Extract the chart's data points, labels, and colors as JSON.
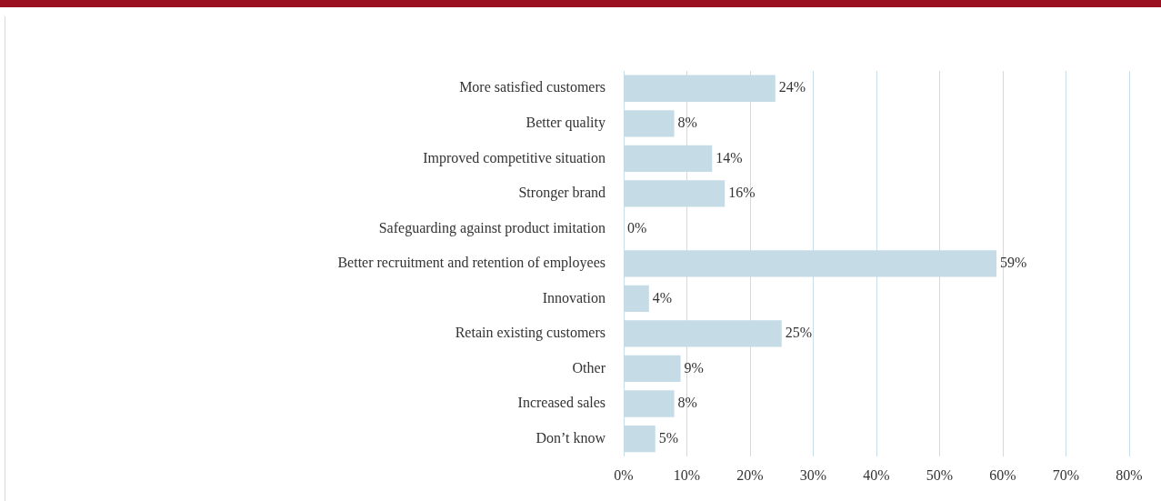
{
  "chart_data": {
    "type": "bar",
    "orientation": "horizontal",
    "categories": [
      "More satisfied customers",
      "Better quality",
      "Improved competitive situation",
      "Stronger brand",
      "Safeguarding against product imitation",
      "Better recruitment and retention of employees",
      "Innovation",
      "Retain existing customers",
      "Other",
      "Increased sales",
      "Don’t know"
    ],
    "values": [
      24,
      8,
      14,
      16,
      0,
      59,
      4,
      25,
      9,
      8,
      5
    ],
    "value_labels": [
      "24%",
      "8%",
      "14%",
      "16%",
      "0%",
      "59%",
      "4%",
      "25%",
      "9%",
      "8%",
      "5%"
    ],
    "color": "#c5dbe6",
    "xlim": [
      0,
      80
    ],
    "xticks": [
      {
        "value": 0,
        "label": "0%"
      },
      {
        "value": 10,
        "label": "10%"
      },
      {
        "value": 20,
        "label": "20%"
      },
      {
        "value": 30,
        "label": "30%"
      },
      {
        "value": 40,
        "label": "40%"
      },
      {
        "value": 50,
        "label": "50%"
      },
      {
        "value": 60,
        "label": "60%"
      },
      {
        "value": 70,
        "label": "70%"
      },
      {
        "value": 80,
        "label": "80%"
      }
    ],
    "grid": "x",
    "legend": false
  }
}
